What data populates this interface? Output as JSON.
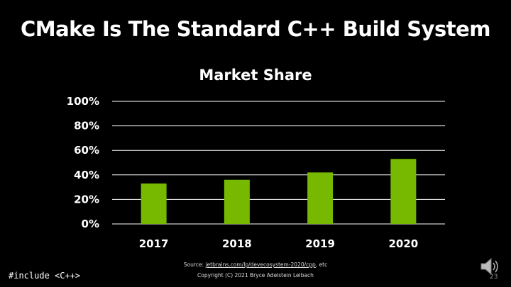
{
  "slide": {
    "title": "CMake Is The Standard C++ Build System",
    "footer_left": "#include <C++>",
    "source_prefix": "Source: ",
    "source_link": "jetbrains.com/lp/devecosystem-2020/cpp",
    "source_suffix": ", etc",
    "copyright": "Copyright (C) 2021 Bryce Adelstein Lelbach",
    "page_number": "23",
    "speaker_icon": "speaker-icon"
  },
  "chart_data": {
    "type": "bar",
    "title": "Market Share",
    "categories": [
      "2017",
      "2018",
      "2019",
      "2020"
    ],
    "values": [
      33,
      36,
      42,
      53
    ],
    "y_ticks": [
      "0%",
      "20%",
      "40%",
      "60%",
      "80%",
      "100%"
    ],
    "ylim": [
      0,
      100
    ],
    "grid": true,
    "bar_color": "#76b900",
    "grid_color": "#ffffff"
  }
}
